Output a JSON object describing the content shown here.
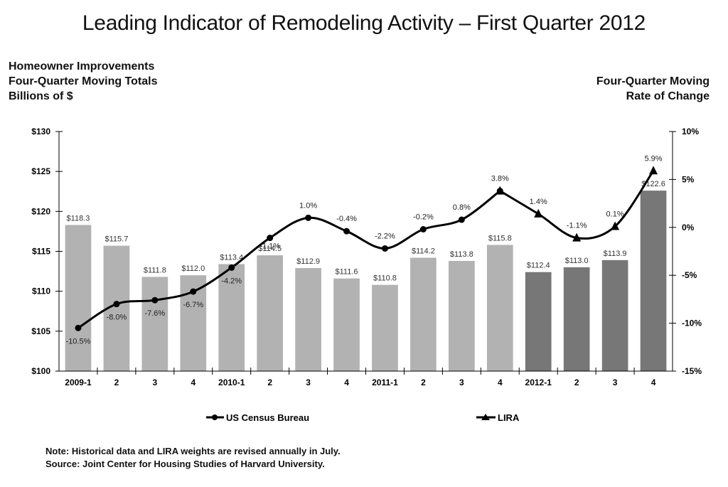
{
  "chart_data": {
    "type": "bar",
    "title": "Leading Indicator of Remodeling Activity – First Quarter 2012",
    "left_axis_title": [
      "Homeowner Improvements",
      "Four-Quarter Moving Totals",
      "Billions of $"
    ],
    "right_axis_title": [
      "Four-Quarter Moving",
      "Rate of Change"
    ],
    "categories": [
      "2009-1",
      "2",
      "3",
      "4",
      "2010-1",
      "2",
      "3",
      "4",
      "2011-1",
      "2",
      "3",
      "4",
      "2012-1",
      "2",
      "3",
      "4"
    ],
    "left_axis": {
      "ylim": [
        100,
        130
      ],
      "ticks": [
        100,
        105,
        110,
        115,
        120,
        125,
        130
      ],
      "tick_labels": [
        "$100",
        "$105",
        "$110",
        "$115",
        "$120",
        "$125",
        "$130"
      ]
    },
    "right_axis": {
      "ylim": [
        -15,
        10
      ],
      "ticks": [
        -15,
        -10,
        -5,
        0,
        5,
        10
      ],
      "tick_labels": [
        "-15%",
        "-10%",
        "-5%",
        "0%",
        "5%",
        "10%"
      ]
    },
    "bars": {
      "values": [
        118.3,
        115.7,
        111.8,
        112.0,
        113.4,
        114.5,
        112.9,
        111.6,
        110.8,
        114.2,
        113.8,
        115.8,
        112.4,
        113.0,
        113.9,
        122.6
      ],
      "labels": [
        "$118.3",
        "$115.7",
        "$111.8",
        "$112.0",
        "$113.4",
        "$114.5",
        "$112.9",
        "$111.6",
        "$110.8",
        "$114.2",
        "$113.8",
        "$115.8",
        "$112.4",
        "$113.0",
        "$113.9",
        "$122.6"
      ],
      "series_type": [
        "census",
        "census",
        "census",
        "census",
        "census",
        "census",
        "census",
        "census",
        "census",
        "census",
        "census",
        "census",
        "lira",
        "lira",
        "lira",
        "lira"
      ],
      "colors": {
        "census": "#b2b2b2",
        "lira": "#777777"
      }
    },
    "series": [
      {
        "name": "US Census Bureau",
        "marker": "circle",
        "start_index": 0,
        "values": [
          -10.5,
          -8.0,
          -7.6,
          -6.7,
          -4.2,
          -1.1,
          1.0,
          -0.4,
          -2.2,
          -0.2,
          0.8,
          3.8
        ],
        "labels": [
          "-10.5%",
          "-8.0%",
          "-7.6%",
          "-6.7%",
          "-4.2%",
          "-1.1%",
          "1.0%",
          "-0.4%",
          "-2.2%",
          "-0.2%",
          "0.8%",
          "3.8%"
        ]
      },
      {
        "name": "LIRA",
        "marker": "triangle",
        "start_index": 11,
        "values": [
          3.8,
          1.4,
          -1.1,
          0.1,
          5.9
        ],
        "labels": [
          "",
          "1.4%",
          "-1.1%",
          "0.1%",
          "5.9%"
        ]
      }
    ],
    "legend": {
      "position": "bottom",
      "items": [
        "US Census Bureau",
        "LIRA"
      ]
    },
    "grid": false
  },
  "footer": {
    "note": "Note: Historical data and LIRA weights are revised annually in July.",
    "source": "Source: Joint Center for Housing Studies of Harvard University."
  }
}
